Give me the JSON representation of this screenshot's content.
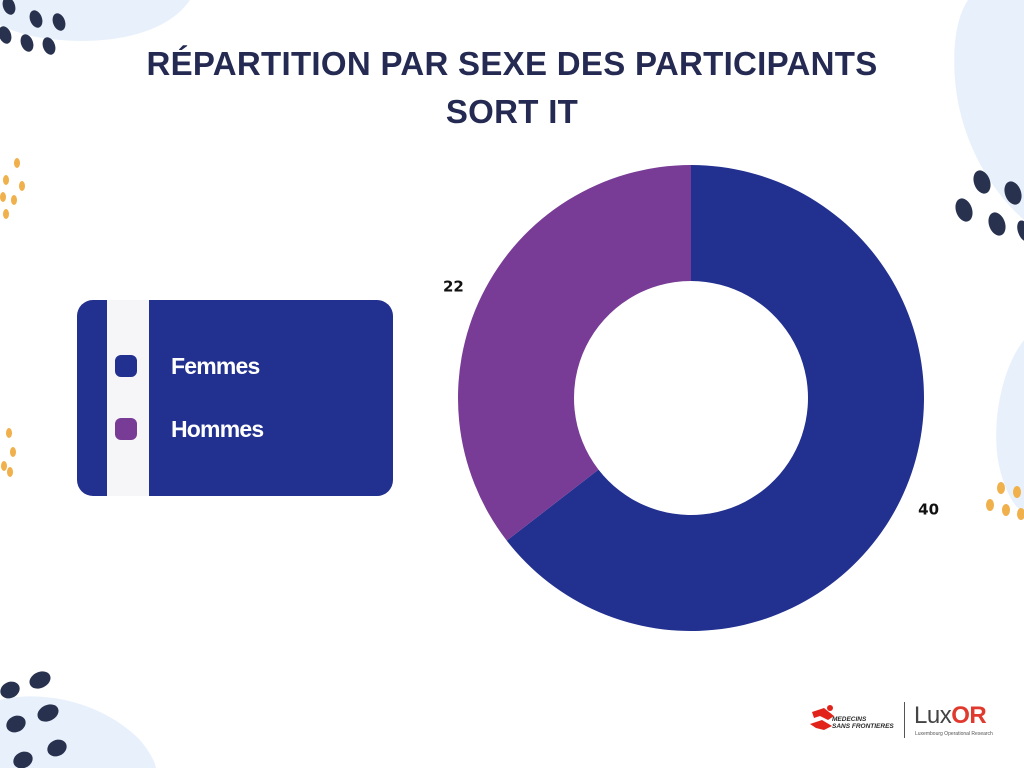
{
  "title_line1": "RÉPARTITION PAR SEXE DES PARTICIPANTS",
  "title_line2": "SORT IT",
  "colors": {
    "femmes": "#22308f",
    "hommes": "#783c96",
    "title": "#242a52",
    "legend_bg": "#22308f",
    "deco_dark": "#28324f",
    "deco_gold": "#f0b04c",
    "deco_blob": "#e8f1fb"
  },
  "chart_data": {
    "type": "pie",
    "categories": [
      "Femmes",
      "Hommes"
    ],
    "values": [
      40,
      22
    ],
    "data_labels": [
      "40",
      "22"
    ],
    "donut": true,
    "legend_position": "left"
  },
  "logos": {
    "msf_line1": "MEDECINS",
    "msf_line2": "SANS FRONTIERES",
    "luxor_main": "Lux",
    "luxor_accent": "OR",
    "luxor_sub": "Luxembourg Operational Research"
  }
}
